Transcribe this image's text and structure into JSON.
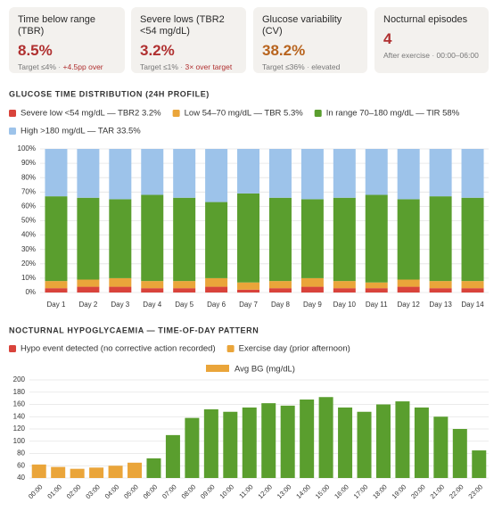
{
  "cards": [
    {
      "title": "Time below range (TBR)",
      "value": "8.5%",
      "value_color": "#b03030",
      "target": "Target ≤4%",
      "note": "+4.5pp over",
      "note_color": "#b03030"
    },
    {
      "title": "Severe lows (TBR2 <54 mg/dL)",
      "value": "3.2%",
      "value_color": "#b03030",
      "target": "Target ≤1%",
      "note": "3× over target",
      "note_color": "#b03030"
    },
    {
      "title": "Glucose variability (CV)",
      "value": "38.2%",
      "value_color": "#b8641e",
      "target": "Target ≤36%",
      "note": "elevated",
      "note_color": "#777777"
    },
    {
      "title": "Nocturnal episodes",
      "value": "4",
      "value_color": "#b03030",
      "target": "After exercise",
      "note": "00:00–06:00",
      "note_color": "#777777"
    }
  ],
  "chart_data": [
    {
      "type": "stacked_bar",
      "title": "GLUCOSE TIME DISTRIBUTION (24H PROFILE)",
      "categories": [
        "Day 1",
        "Day 2",
        "Day 3",
        "Day 4",
        "Day 5",
        "Day 6",
        "Day 7",
        "Day 8",
        "Day 9",
        "Day 10",
        "Day 11",
        "Day 12",
        "Day 13",
        "Day 14"
      ],
      "series": [
        {
          "name": "Severe low <54 mg/dL — TBR2 3.2%",
          "color": "#d9433b",
          "values": [
            3,
            4,
            4,
            3,
            3,
            4,
            2,
            3,
            4,
            3,
            3,
            4,
            3,
            3
          ]
        },
        {
          "name": "Low 54–70 mg/dL — TBR 5.3%",
          "color": "#eaa53a",
          "values": [
            5,
            5,
            6,
            5,
            5,
            6,
            5,
            5,
            6,
            5,
            4,
            5,
            5,
            5
          ]
        },
        {
          "name": "In range 70–180 mg/dL — TIR 58%",
          "color": "#5a9e2e",
          "values": [
            59,
            57,
            55,
            60,
            58,
            53,
            62,
            58,
            55,
            58,
            61,
            56,
            59,
            58
          ]
        },
        {
          "name": "High >180 mg/dL — TAR 33.5%",
          "color": "#9dc3ea",
          "values": [
            33,
            34,
            35,
            32,
            34,
            37,
            31,
            34,
            35,
            34,
            32,
            35,
            33,
            34
          ]
        }
      ],
      "ylim": [
        0,
        100
      ],
      "yticks": [
        {
          "value": 0,
          "label": "0%"
        },
        {
          "value": 10,
          "label": "10%"
        },
        {
          "value": 20,
          "label": "20%"
        },
        {
          "value": 30,
          "label": "30%"
        },
        {
          "value": 40,
          "label": "40%"
        },
        {
          "value": 50,
          "label": "50%"
        },
        {
          "value": 60,
          "label": "60%"
        },
        {
          "value": 70,
          "label": "70%"
        },
        {
          "value": 80,
          "label": "80%"
        },
        {
          "value": 90,
          "label": "90%"
        },
        {
          "value": 100,
          "label": "100%"
        }
      ],
      "grid": true
    },
    {
      "type": "bar",
      "title": "NOCTURNAL HYPOGLYCAEMIA — TIME-OF-DAY PATTERN",
      "legend": [
        {
          "label": "Hypo event detected (no corrective action recorded)",
          "color": "#d9433b"
        },
        {
          "label": "Exercise day (prior afternoon)",
          "color": "#eaa53a"
        }
      ],
      "categories": [
        "00:00",
        "01:00",
        "02:00",
        "03:00",
        "04:00",
        "05:00",
        "06:00",
        "07:00",
        "08:00",
        "09:00",
        "10:00",
        "11:00",
        "12:00",
        "13:00",
        "14:00",
        "15:00",
        "16:00",
        "17:00",
        "18:00",
        "19:00",
        "20:00",
        "21:00",
        "22:00",
        "23:00"
      ],
      "series": [
        {
          "name": "Avg BG (mg/dL)",
          "color": "#eaa53a",
          "values": [
            62,
            58,
            55,
            57,
            60,
            65,
            72,
            110,
            138,
            152,
            148,
            155,
            162,
            158,
            168,
            172,
            155,
            148,
            160,
            165,
            155,
            140,
            120,
            85
          ],
          "colors": [
            "#eaa53a",
            "#eaa53a",
            "#eaa53a",
            "#eaa53a",
            "#eaa53a",
            "#eaa53a",
            "#5a9e2e",
            "#5a9e2e",
            "#5a9e2e",
            "#5a9e2e",
            "#5a9e2e",
            "#5a9e2e",
            "#5a9e2e",
            "#5a9e2e",
            "#5a9e2e",
            "#5a9e2e",
            "#5a9e2e",
            "#5a9e2e",
            "#5a9e2e",
            "#5a9e2e",
            "#5a9e2e",
            "#5a9e2e",
            "#5a9e2e",
            "#5a9e2e"
          ]
        }
      ],
      "ylim": [
        40,
        200
      ],
      "yticks": [
        40,
        60,
        80,
        100,
        120,
        140,
        160,
        180,
        200
      ],
      "grid": true
    }
  ]
}
